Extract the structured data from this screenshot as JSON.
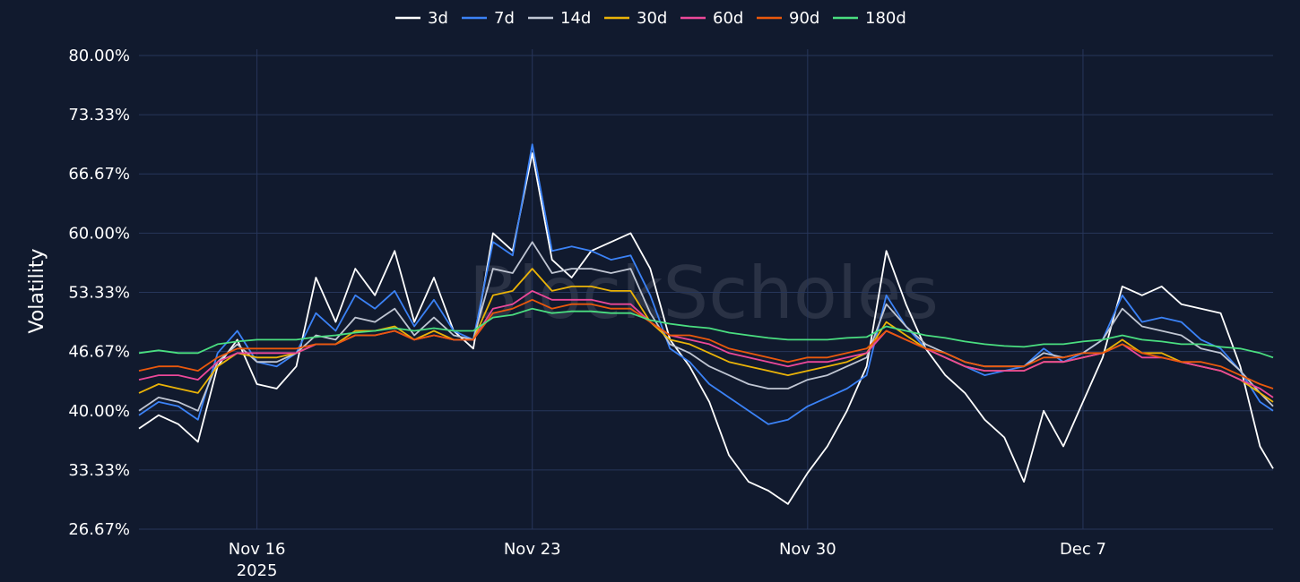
{
  "watermark": "BlockScholes",
  "colors": {
    "background": "#111a2e",
    "grid": "#27365a",
    "text": "#ffffff"
  },
  "chart_data": {
    "type": "line",
    "ylabel": "Volatility",
    "xlabel": "",
    "title": "",
    "ylim": [
      26.67,
      80.0
    ],
    "y_ticks": [
      "80.00%",
      "73.33%",
      "66.67%",
      "60.00%",
      "53.33%",
      "46.67%",
      "40.00%",
      "33.33%",
      "26.67%"
    ],
    "y_tick_values": [
      80.0,
      73.33,
      66.67,
      60.0,
      53.33,
      46.67,
      40.0,
      33.33,
      26.67
    ],
    "xlim": [
      "2025-11-13T00:00",
      "2025-12-11T20:00"
    ],
    "x_ticks": [
      {
        "date": "2025-11-16",
        "label": "Nov 16",
        "sublabel": "2025"
      },
      {
        "date": "2025-11-23",
        "label": "Nov 23",
        "sublabel": ""
      },
      {
        "date": "2025-11-30",
        "label": "Nov 30",
        "sublabel": ""
      },
      {
        "date": "2025-12-07",
        "label": "Dec 7",
        "sublabel": ""
      }
    ],
    "legend_position": "top-center",
    "grid": true,
    "x": [
      "2025-11-13T00:00",
      "2025-11-13T12:00",
      "2025-11-14T00:00",
      "2025-11-14T12:00",
      "2025-11-15T00:00",
      "2025-11-15T12:00",
      "2025-11-16T00:00",
      "2025-11-16T12:00",
      "2025-11-17T00:00",
      "2025-11-17T12:00",
      "2025-11-18T00:00",
      "2025-11-18T12:00",
      "2025-11-19T00:00",
      "2025-11-19T12:00",
      "2025-11-20T00:00",
      "2025-11-20T12:00",
      "2025-11-21T00:00",
      "2025-11-21T12:00",
      "2025-11-22T00:00",
      "2025-11-22T12:00",
      "2025-11-23T00:00",
      "2025-11-23T12:00",
      "2025-11-24T00:00",
      "2025-11-24T12:00",
      "2025-11-25T00:00",
      "2025-11-25T12:00",
      "2025-11-26T00:00",
      "2025-11-26T12:00",
      "2025-11-27T00:00",
      "2025-11-27T12:00",
      "2025-11-28T00:00",
      "2025-11-28T12:00",
      "2025-11-29T00:00",
      "2025-11-29T12:00",
      "2025-11-30T00:00",
      "2025-11-30T12:00",
      "2025-12-01T00:00",
      "2025-12-01T12:00",
      "2025-12-02T00:00",
      "2025-12-02T12:00",
      "2025-12-03T00:00",
      "2025-12-03T12:00",
      "2025-12-04T00:00",
      "2025-12-04T12:00",
      "2025-12-05T00:00",
      "2025-12-05T12:00",
      "2025-12-06T00:00",
      "2025-12-06T12:00",
      "2025-12-07T00:00",
      "2025-12-07T12:00",
      "2025-12-08T00:00",
      "2025-12-08T12:00",
      "2025-12-09T00:00",
      "2025-12-09T12:00",
      "2025-12-10T00:00",
      "2025-12-10T12:00",
      "2025-12-11T00:00",
      "2025-12-11T12:00",
      "2025-12-11T20:00"
    ],
    "series": [
      {
        "name": "3d",
        "color": "#ffffff",
        "values": [
          38.0,
          39.5,
          38.5,
          36.5,
          45.0,
          48.0,
          43.0,
          42.5,
          45.0,
          55.0,
          50.0,
          56.0,
          53.0,
          58.0,
          50.0,
          55.0,
          49.0,
          47.0,
          60.0,
          58.0,
          69.0,
          57.0,
          55.0,
          58.0,
          59.0,
          60.0,
          56.0,
          48.0,
          45.0,
          41.0,
          35.0,
          32.0,
          31.0,
          29.5,
          33.0,
          36.0,
          40.0,
          45.0,
          58.0,
          52.0,
          47.0,
          44.0,
          42.0,
          39.0,
          37.0,
          32.0,
          40.0,
          36.0,
          41.0,
          46.0,
          54.0,
          53.0,
          54.0,
          52.0,
          51.5,
          51.0,
          45.0,
          36.0,
          33.5
        ]
      },
      {
        "name": "7d",
        "color": "#3b82f6",
        "values": [
          39.5,
          41.0,
          40.5,
          39.0,
          46.5,
          49.0,
          45.5,
          45.0,
          46.5,
          51.0,
          49.0,
          53.0,
          51.5,
          53.5,
          49.5,
          52.5,
          49.0,
          48.0,
          59.0,
          57.5,
          70.0,
          58.0,
          58.5,
          58.0,
          57.0,
          57.5,
          53.0,
          47.0,
          45.5,
          43.0,
          41.5,
          40.0,
          38.5,
          39.0,
          40.5,
          41.5,
          42.5,
          44.0,
          53.0,
          49.5,
          47.0,
          46.0,
          45.0,
          44.0,
          44.5,
          45.0,
          47.0,
          45.5,
          46.5,
          48.0,
          53.0,
          50.0,
          50.5,
          50.0,
          48.0,
          47.0,
          44.5,
          41.0,
          40.0
        ]
      },
      {
        "name": "14d",
        "color": "#c0c6d3",
        "values": [
          40.0,
          41.5,
          41.0,
          40.0,
          45.5,
          47.5,
          45.5,
          45.5,
          46.5,
          48.5,
          48.0,
          50.5,
          50.0,
          51.5,
          48.5,
          50.5,
          48.5,
          48.0,
          56.0,
          55.5,
          59.0,
          55.5,
          56.0,
          56.0,
          55.5,
          56.0,
          51.0,
          47.5,
          46.5,
          45.0,
          44.0,
          43.0,
          42.5,
          42.5,
          43.5,
          44.0,
          45.0,
          46.0,
          52.0,
          49.5,
          47.5,
          46.5,
          45.5,
          45.0,
          45.0,
          45.0,
          46.5,
          46.0,
          46.5,
          48.0,
          51.5,
          49.5,
          49.0,
          48.5,
          47.0,
          46.5,
          44.5,
          42.0,
          40.5
        ]
      },
      {
        "name": "30d",
        "color": "#eab308",
        "values": [
          42.0,
          43.0,
          42.5,
          42.0,
          45.0,
          46.5,
          46.0,
          46.0,
          46.5,
          47.5,
          47.5,
          49.0,
          49.0,
          49.5,
          48.0,
          49.0,
          48.0,
          48.0,
          53.0,
          53.5,
          56.0,
          53.5,
          54.0,
          54.0,
          53.5,
          53.5,
          50.0,
          48.0,
          47.5,
          46.5,
          45.5,
          45.0,
          44.5,
          44.0,
          44.5,
          45.0,
          45.5,
          46.5,
          50.0,
          48.5,
          47.0,
          46.0,
          45.0,
          44.5,
          44.5,
          44.5,
          45.5,
          45.5,
          46.0,
          46.5,
          48.0,
          46.5,
          46.5,
          45.5,
          45.0,
          44.5,
          43.5,
          42.0,
          41.0
        ]
      },
      {
        "name": "60d",
        "color": "#ec4899",
        "values": [
          43.5,
          44.0,
          44.0,
          43.5,
          45.5,
          46.5,
          46.5,
          46.5,
          46.5,
          47.5,
          47.5,
          48.5,
          48.5,
          49.0,
          48.0,
          48.5,
          48.0,
          48.0,
          51.5,
          52.0,
          53.5,
          52.5,
          52.5,
          52.5,
          52.0,
          52.0,
          50.0,
          48.5,
          48.0,
          47.5,
          46.5,
          46.0,
          45.5,
          45.0,
          45.5,
          45.5,
          46.0,
          46.5,
          49.0,
          48.0,
          47.0,
          46.0,
          45.0,
          44.5,
          44.5,
          44.5,
          45.5,
          45.5,
          46.0,
          46.5,
          47.5,
          46.0,
          46.0,
          45.5,
          45.0,
          44.5,
          43.5,
          42.5,
          41.5
        ]
      },
      {
        "name": "90d",
        "color": "#ea580c",
        "values": [
          44.5,
          45.0,
          45.0,
          44.5,
          46.0,
          47.0,
          47.0,
          47.0,
          47.0,
          47.5,
          47.5,
          48.5,
          48.5,
          49.0,
          48.0,
          48.5,
          48.0,
          48.0,
          51.0,
          51.5,
          52.5,
          51.5,
          52.0,
          52.0,
          51.5,
          51.5,
          50.0,
          48.5,
          48.5,
          48.0,
          47.0,
          46.5,
          46.0,
          45.5,
          46.0,
          46.0,
          46.5,
          47.0,
          49.0,
          48.0,
          47.0,
          46.5,
          45.5,
          45.0,
          45.0,
          45.0,
          46.0,
          46.0,
          46.5,
          46.5,
          47.5,
          46.5,
          46.0,
          45.5,
          45.5,
          45.0,
          44.0,
          43.0,
          42.5
        ]
      },
      {
        "name": "180d",
        "color": "#4ade80",
        "values": [
          46.5,
          46.8,
          46.5,
          46.5,
          47.5,
          47.8,
          48.0,
          48.0,
          48.0,
          48.3,
          48.5,
          48.8,
          49.0,
          49.3,
          49.0,
          49.3,
          49.0,
          49.0,
          50.5,
          50.8,
          51.5,
          51.0,
          51.2,
          51.2,
          51.0,
          51.0,
          50.2,
          49.8,
          49.5,
          49.3,
          48.8,
          48.5,
          48.2,
          48.0,
          48.0,
          48.0,
          48.2,
          48.3,
          49.5,
          49.0,
          48.5,
          48.2,
          47.8,
          47.5,
          47.3,
          47.2,
          47.5,
          47.5,
          47.8,
          48.0,
          48.5,
          48.0,
          47.8,
          47.5,
          47.5,
          47.2,
          47.0,
          46.5,
          46.0
        ]
      }
    ]
  }
}
